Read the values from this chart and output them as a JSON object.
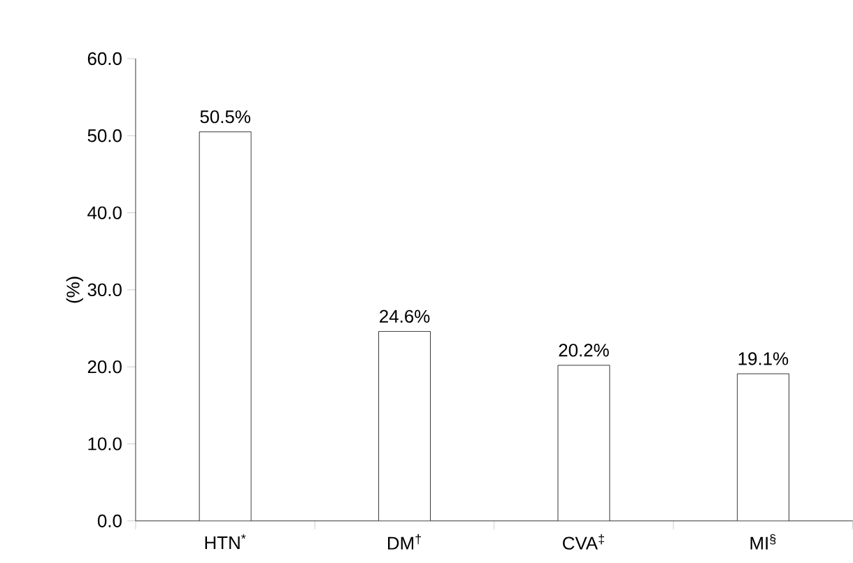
{
  "chart_data": {
    "type": "bar",
    "ylabel": "(%)",
    "categories": [
      "HTN$^{*}$",
      "DM$^{†}$",
      "CVA$^{‡}$",
      "MI$^{§}$"
    ],
    "values": [
      50.5,
      24.6,
      20.2,
      19.1
    ],
    "value_labels": [
      "50.5%",
      "24.6%",
      "20.2%",
      "19.1%"
    ],
    "color": "#ffffff",
    "ylim": [
      0,
      60
    ],
    "yticks": [
      {
        "value": 0,
        "label": "0.0"
      },
      {
        "value": 10,
        "label": "10.0"
      },
      {
        "value": 20,
        "label": "20.0"
      },
      {
        "value": 30,
        "label": "30.0"
      },
      {
        "value": 40,
        "label": "40.0"
      },
      {
        "value": 50,
        "label": "50.0"
      },
      {
        "value": 60,
        "label": "60.0"
      }
    ],
    "grid": false
  }
}
